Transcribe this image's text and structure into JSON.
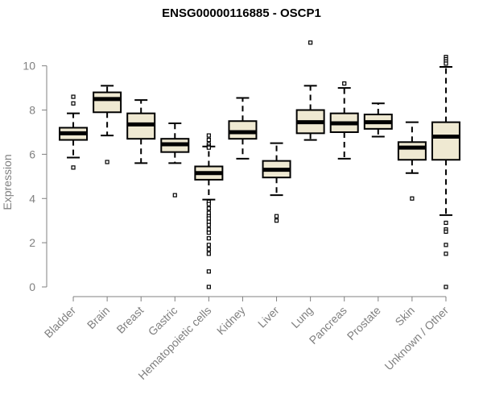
{
  "chart_data": {
    "type": "box",
    "title": "ENSG00000116885 - OSCP1",
    "xlabel": "",
    "ylabel": "Expression",
    "ylim": [
      0,
      11.3
    ],
    "yticks": [
      0,
      2,
      4,
      6,
      8,
      10
    ],
    "ytick_labels": [
      "0",
      "2",
      "4",
      "6",
      "8",
      "10"
    ],
    "grid": false,
    "colors": {
      "box_fill": "#efe9d2",
      "stroke": "#000000",
      "axis": "#808080",
      "text": "#808080"
    },
    "boxes": [
      {
        "category": "Bladder",
        "min": 5.85,
        "q1": 6.65,
        "median": 6.95,
        "q3": 7.2,
        "max": 7.85,
        "outliers": [
          8.6,
          8.3,
          5.4
        ]
      },
      {
        "category": "Brain",
        "min": 6.85,
        "q1": 7.9,
        "median": 8.5,
        "q3": 8.8,
        "max": 9.1,
        "outliers": [
          5.65
        ]
      },
      {
        "category": "Breast",
        "min": 5.6,
        "q1": 6.7,
        "median": 7.35,
        "q3": 7.85,
        "max": 8.45,
        "outliers": []
      },
      {
        "category": "Gastric",
        "min": 5.6,
        "q1": 6.1,
        "median": 6.45,
        "q3": 6.7,
        "max": 7.4,
        "outliers": [
          4.15
        ]
      },
      {
        "category": "Hematopoietic cells",
        "min": 3.95,
        "q1": 4.85,
        "median": 5.15,
        "q3": 5.45,
        "max": 6.35,
        "outliers": [
          6.85,
          6.65,
          6.45,
          6.35,
          6.3,
          3.85,
          3.75,
          3.55,
          3.35,
          3.2,
          3.1,
          2.95,
          2.8,
          2.6,
          2.45,
          2.2,
          1.9,
          1.7,
          1.5,
          0.7,
          0.0
        ]
      },
      {
        "category": "Kidney",
        "min": 5.8,
        "q1": 6.7,
        "median": 7.0,
        "q3": 7.5,
        "max": 8.55,
        "outliers": []
      },
      {
        "category": "Liver",
        "min": 4.15,
        "q1": 4.95,
        "median": 5.3,
        "q3": 5.7,
        "max": 6.5,
        "outliers": [
          3.2,
          3.0
        ]
      },
      {
        "category": "Lung",
        "min": 6.65,
        "q1": 6.95,
        "median": 7.45,
        "q3": 8.0,
        "max": 9.1,
        "outliers": [
          11.05
        ]
      },
      {
        "category": "Pancreas",
        "min": 5.8,
        "q1": 7.0,
        "median": 7.4,
        "q3": 7.85,
        "max": 9.0,
        "outliers": [
          9.2
        ]
      },
      {
        "category": "Prostate",
        "min": 6.8,
        "q1": 7.15,
        "median": 7.45,
        "q3": 7.8,
        "max": 8.3,
        "outliers": []
      },
      {
        "category": "Skin",
        "min": 5.15,
        "q1": 5.75,
        "median": 6.3,
        "q3": 6.55,
        "max": 7.45,
        "outliers": [
          4.0
        ]
      },
      {
        "category": "Unknown / Other",
        "min": 3.25,
        "q1": 5.75,
        "median": 6.8,
        "q3": 7.45,
        "max": 9.95,
        "outliers": [
          10.4,
          10.3,
          10.2,
          10.1,
          2.9,
          2.6,
          2.5,
          1.9,
          1.5,
          0.0
        ]
      }
    ]
  }
}
